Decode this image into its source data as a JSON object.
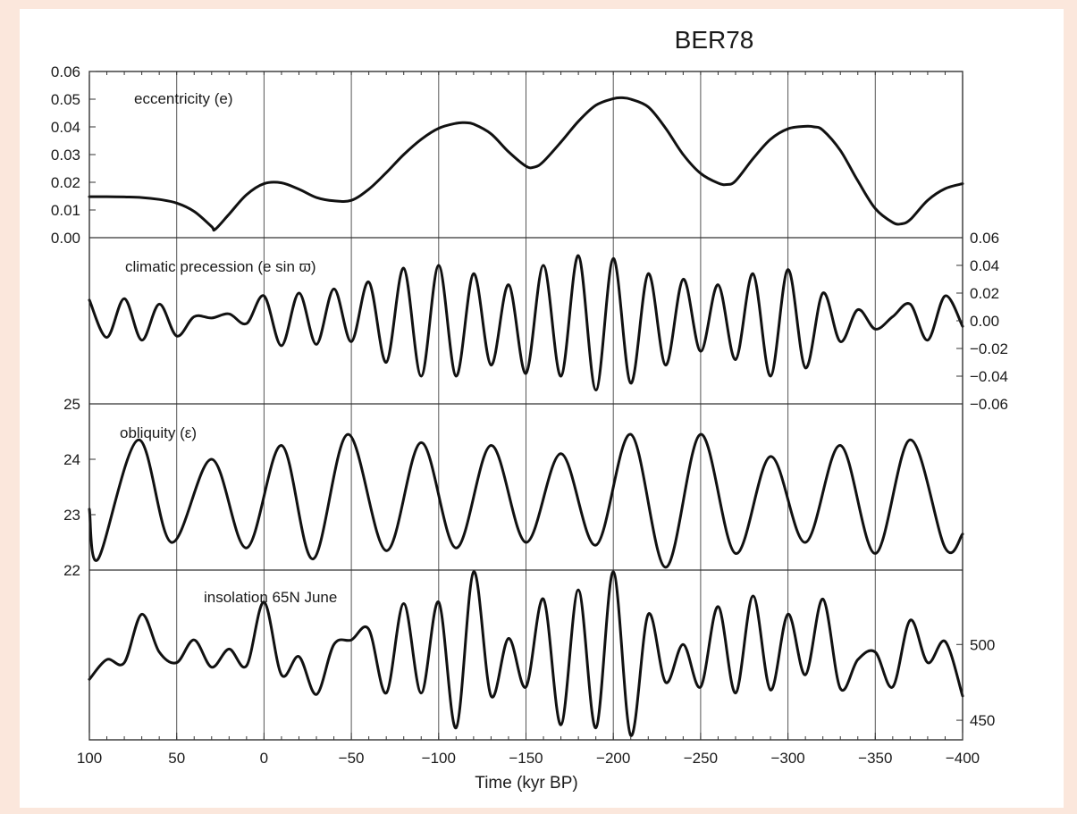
{
  "chart_data": {
    "type": "line",
    "title": "BER78",
    "xlabel": "Time (kyr BP)",
    "xlim": [
      100,
      -400
    ],
    "x_ticks": [
      100,
      50,
      0,
      -50,
      -100,
      -150,
      -200,
      -250,
      -300,
      -350,
      -400
    ],
    "x_tick_labels": [
      "100",
      "50",
      "0",
      "−50",
      "−100",
      "−150",
      "−200",
      "−250",
      "−300",
      "−350",
      "−400"
    ],
    "grid": "vertical lines at x ticks",
    "line_color": "#111111",
    "panels": [
      {
        "label": "eccentricity (e)",
        "axis_side": "left",
        "ylim": [
          0.0,
          0.06
        ],
        "ticks": [
          0.0,
          0.01,
          0.02,
          0.03,
          0.04,
          0.05,
          0.06
        ],
        "tick_labels": [
          "0.00",
          "0.01",
          "0.02",
          "0.03",
          "0.04",
          "0.05",
          "0.06"
        ],
        "series": {
          "x": [
            100,
            90,
            80,
            70,
            60,
            50,
            40,
            30,
            28,
            20,
            10,
            0,
            -10,
            -20,
            -30,
            -40,
            -50,
            -60,
            -70,
            -80,
            -90,
            -100,
            -110,
            -115,
            -120,
            -130,
            -140,
            -150,
            -155,
            -160,
            -170,
            -180,
            -190,
            -200,
            -205,
            -210,
            -220,
            -230,
            -240,
            -250,
            -260,
            -265,
            -270,
            -280,
            -290,
            -300,
            -310,
            -315,
            -320,
            -330,
            -340,
            -350,
            -360,
            -365,
            -370,
            -380,
            -390,
            -400
          ],
          "y": [
            0.0148,
            0.0148,
            0.0147,
            0.0145,
            0.0138,
            0.0125,
            0.0095,
            0.004,
            0.003,
            0.0085,
            0.0155,
            0.0195,
            0.0198,
            0.0175,
            0.0145,
            0.0133,
            0.0135,
            0.0175,
            0.0235,
            0.03,
            0.0355,
            0.0395,
            0.0413,
            0.0415,
            0.041,
            0.0375,
            0.031,
            0.0258,
            0.0255,
            0.0275,
            0.0345,
            0.042,
            0.0478,
            0.0502,
            0.0505,
            0.05,
            0.0472,
            0.0395,
            0.03,
            0.0232,
            0.0197,
            0.0192,
            0.0205,
            0.0285,
            0.0355,
            0.0393,
            0.0402,
            0.04,
            0.0388,
            0.0315,
            0.0205,
            0.0105,
            0.0055,
            0.005,
            0.0065,
            0.0135,
            0.0177,
            0.0195
          ]
        }
      },
      {
        "label": "climatic precession (e sin ϖ)",
        "axis_side": "right",
        "ylim": [
          -0.06,
          0.06
        ],
        "ticks": [
          0.06,
          0.04,
          0.02,
          0.0,
          -0.02,
          -0.04,
          -0.06
        ],
        "tick_labels": [
          "0.06",
          "0.04",
          "0.02",
          "0.00",
          "−0.02",
          "−0.04",
          "−0.06"
        ],
        "series": {
          "x": [
            100,
            90,
            80,
            70,
            60,
            50,
            40,
            30,
            20,
            10,
            0,
            -10,
            -20,
            -30,
            -40,
            -50,
            -60,
            -70,
            -80,
            -90,
            -100,
            -110,
            -120,
            -130,
            -140,
            -150,
            -160,
            -170,
            -180,
            -190,
            -200,
            -210,
            -220,
            -230,
            -240,
            -250,
            -260,
            -270,
            -280,
            -290,
            -300,
            -310,
            -320,
            -330,
            -340,
            -350,
            -360,
            -370,
            -380,
            -390,
            -400
          ],
          "y": [
            0.015,
            -0.012,
            0.016,
            -0.014,
            0.012,
            -0.011,
            0.003,
            0.002,
            0.005,
            -0.002,
            0.018,
            -0.018,
            0.02,
            -0.017,
            0.023,
            -0.015,
            0.028,
            -0.03,
            0.038,
            -0.04,
            0.04,
            -0.04,
            0.034,
            -0.032,
            0.026,
            -0.038,
            0.04,
            -0.04,
            0.047,
            -0.05,
            0.045,
            -0.045,
            0.034,
            -0.032,
            0.03,
            -0.022,
            0.026,
            -0.028,
            0.034,
            -0.04,
            0.037,
            -0.034,
            0.02,
            -0.015,
            0.008,
            -0.006,
            0.003,
            0.012,
            -0.014,
            0.018,
            -0.004
          ]
        }
      },
      {
        "label": "obliquity (ε)",
        "axis_side": "left",
        "ylim": [
          22,
          25
        ],
        "ticks": [
          22,
          23,
          24,
          25
        ],
        "tick_labels": [
          "22",
          "23",
          "24",
          "25"
        ],
        "series": {
          "x": [
            100,
            95,
            72,
            53,
            30,
            10,
            -10,
            -28,
            -48,
            -70,
            -90,
            -110,
            -130,
            -150,
            -170,
            -190,
            -210,
            -230,
            -250,
            -270,
            -290,
            -310,
            -330,
            -350,
            -370,
            -390,
            -400
          ],
          "y": [
            23.1,
            22.2,
            24.35,
            22.5,
            24.0,
            22.4,
            24.25,
            22.2,
            24.45,
            22.35,
            24.3,
            22.4,
            24.25,
            22.5,
            24.1,
            22.45,
            24.45,
            22.05,
            24.45,
            22.3,
            24.05,
            22.5,
            24.25,
            22.3,
            24.35,
            22.4,
            22.65
          ]
        }
      },
      {
        "label": "insolation 65N June",
        "axis_side": "right",
        "ylim": [
          430,
          555
        ],
        "ticks": [
          450,
          500
        ],
        "tick_labels": [
          "450",
          "500"
        ],
        "series": {
          "x": [
            100,
            90,
            80,
            70,
            60,
            50,
            40,
            30,
            20,
            10,
            0,
            -10,
            -20,
            -30,
            -40,
            -50,
            -60,
            -70,
            -80,
            -90,
            -100,
            -110,
            -120,
            -130,
            -140,
            -150,
            -160,
            -170,
            -180,
            -190,
            -200,
            -210,
            -220,
            -230,
            -240,
            -250,
            -260,
            -270,
            -280,
            -290,
            -300,
            -310,
            -320,
            -330,
            -340,
            -350,
            -360,
            -370,
            -380,
            -390,
            -400
          ],
          "y": [
            477,
            490,
            488,
            520,
            495,
            488,
            503,
            485,
            497,
            486,
            528,
            480,
            492,
            467,
            500,
            503,
            510,
            468,
            527,
            468,
            528,
            445,
            548,
            466,
            504,
            472,
            530,
            447,
            536,
            445,
            548,
            440,
            520,
            475,
            500,
            472,
            525,
            468,
            532,
            470,
            520,
            480,
            530,
            471,
            490,
            495,
            472,
            516,
            488,
            502,
            466
          ]
        }
      }
    ]
  }
}
